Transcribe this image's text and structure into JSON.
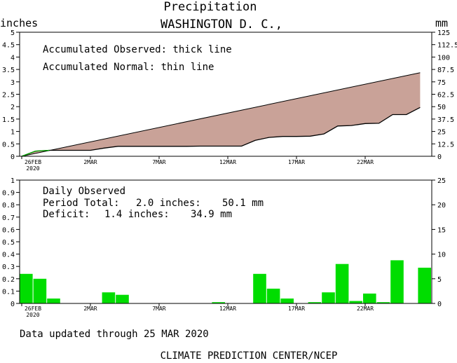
{
  "header": {
    "title": "Precipitation",
    "station": "WASHINGTON D. C.,",
    "left_unit": "inches",
    "right_unit": "mm"
  },
  "chart_data": [
    {
      "type": "area",
      "legend": [
        "Accumulated Observed: thick line",
        "Accumulated Normal: thin line"
      ],
      "ylim_inches": [
        0,
        5
      ],
      "y_ticks_inches": [
        "0",
        "0.5",
        "1",
        "1.5",
        "2",
        "2.5",
        "3",
        "3.5",
        "4",
        "4.5",
        "5"
      ],
      "ylim_mm": [
        0,
        125
      ],
      "y_ticks_mm": [
        "0",
        "12.5",
        "25",
        "37.5",
        "50",
        "62.5",
        "75",
        "87.5",
        "100",
        "112.5",
        "125"
      ],
      "x_ticks": [
        "26FEB",
        "2MAR",
        "7MAR",
        "12MAR",
        "17MAR",
        "22MAR"
      ],
      "x_tick_year": "2020",
      "x_tick_day_index": [
        0,
        5,
        10,
        15,
        20,
        25
      ],
      "deficit_fill_color": "#c9a298",
      "observed_day_index": [
        0,
        1,
        2,
        3,
        4,
        5,
        6,
        7,
        8,
        9,
        10,
        11,
        12,
        13,
        14,
        15,
        16,
        17,
        18,
        19,
        20,
        21,
        22,
        23,
        24,
        25,
        26,
        27,
        28
      ],
      "observed_inches": [
        0.0,
        0.21,
        0.24,
        0.24,
        0.24,
        0.24,
        0.33,
        0.4,
        0.4,
        0.4,
        0.4,
        0.4,
        0.4,
        0.41,
        0.41,
        0.41,
        0.41,
        0.64,
        0.76,
        0.8,
        0.8,
        0.81,
        0.9,
        1.22,
        1.24,
        1.32,
        1.33,
        1.68,
        1.68
      ],
      "normal_day_index": [
        0,
        29
      ],
      "normal_inches": [
        0.0,
        3.37
      ],
      "observed_last_point": {
        "day_index": 29,
        "inches": 1.97
      }
    },
    {
      "type": "bar",
      "legend": [
        "Daily Observed"
      ],
      "ylim_inches": [
        0,
        1
      ],
      "y_ticks_inches": [
        "0",
        "0.1",
        "0.2",
        "0.3",
        "0.4",
        "0.5",
        "0.6",
        "0.7",
        "0.8",
        "0.9",
        "1"
      ],
      "ylim_mm": [
        0,
        25
      ],
      "y_ticks_mm": [
        "0",
        "5",
        "10",
        "15",
        "20",
        "25"
      ],
      "x_ticks": [
        "26FEB",
        "2MAR",
        "7MAR",
        "12MAR",
        "17MAR",
        "22MAR"
      ],
      "x_tick_year": "2020",
      "x_tick_day_index": [
        0,
        5,
        10,
        15,
        20,
        25
      ],
      "bar_color": "#00dd00",
      "bars": [
        {
          "day_index": 0,
          "inches": 0.24
        },
        {
          "day_index": 1,
          "inches": 0.2
        },
        {
          "day_index": 2,
          "inches": 0.04
        },
        {
          "day_index": 6,
          "inches": 0.09
        },
        {
          "day_index": 7,
          "inches": 0.07
        },
        {
          "day_index": 14,
          "inches": 0.01
        },
        {
          "day_index": 17,
          "inches": 0.24
        },
        {
          "day_index": 18,
          "inches": 0.12
        },
        {
          "day_index": 19,
          "inches": 0.04
        },
        {
          "day_index": 21,
          "inches": 0.01
        },
        {
          "day_index": 22,
          "inches": 0.09
        },
        {
          "day_index": 23,
          "inches": 0.32
        },
        {
          "day_index": 24,
          "inches": 0.02
        },
        {
          "day_index": 25,
          "inches": 0.08
        },
        {
          "day_index": 26,
          "inches": 0.01
        },
        {
          "day_index": 27,
          "inches": 0.35
        },
        {
          "day_index": 29,
          "inches": 0.29
        }
      ]
    }
  ],
  "summary": {
    "period_total_label": "Period Total:",
    "period_total_in": "2.0 inches:",
    "period_total_mm": "50.1 mm",
    "deficit_label": "Deficit:",
    "deficit_in": "1.4 inches:",
    "deficit_mm": "34.9 mm"
  },
  "footer": {
    "updated": "Data updated through 25 MAR 2020",
    "credit": "CLIMATE PREDICTION CENTER/NCEP"
  }
}
